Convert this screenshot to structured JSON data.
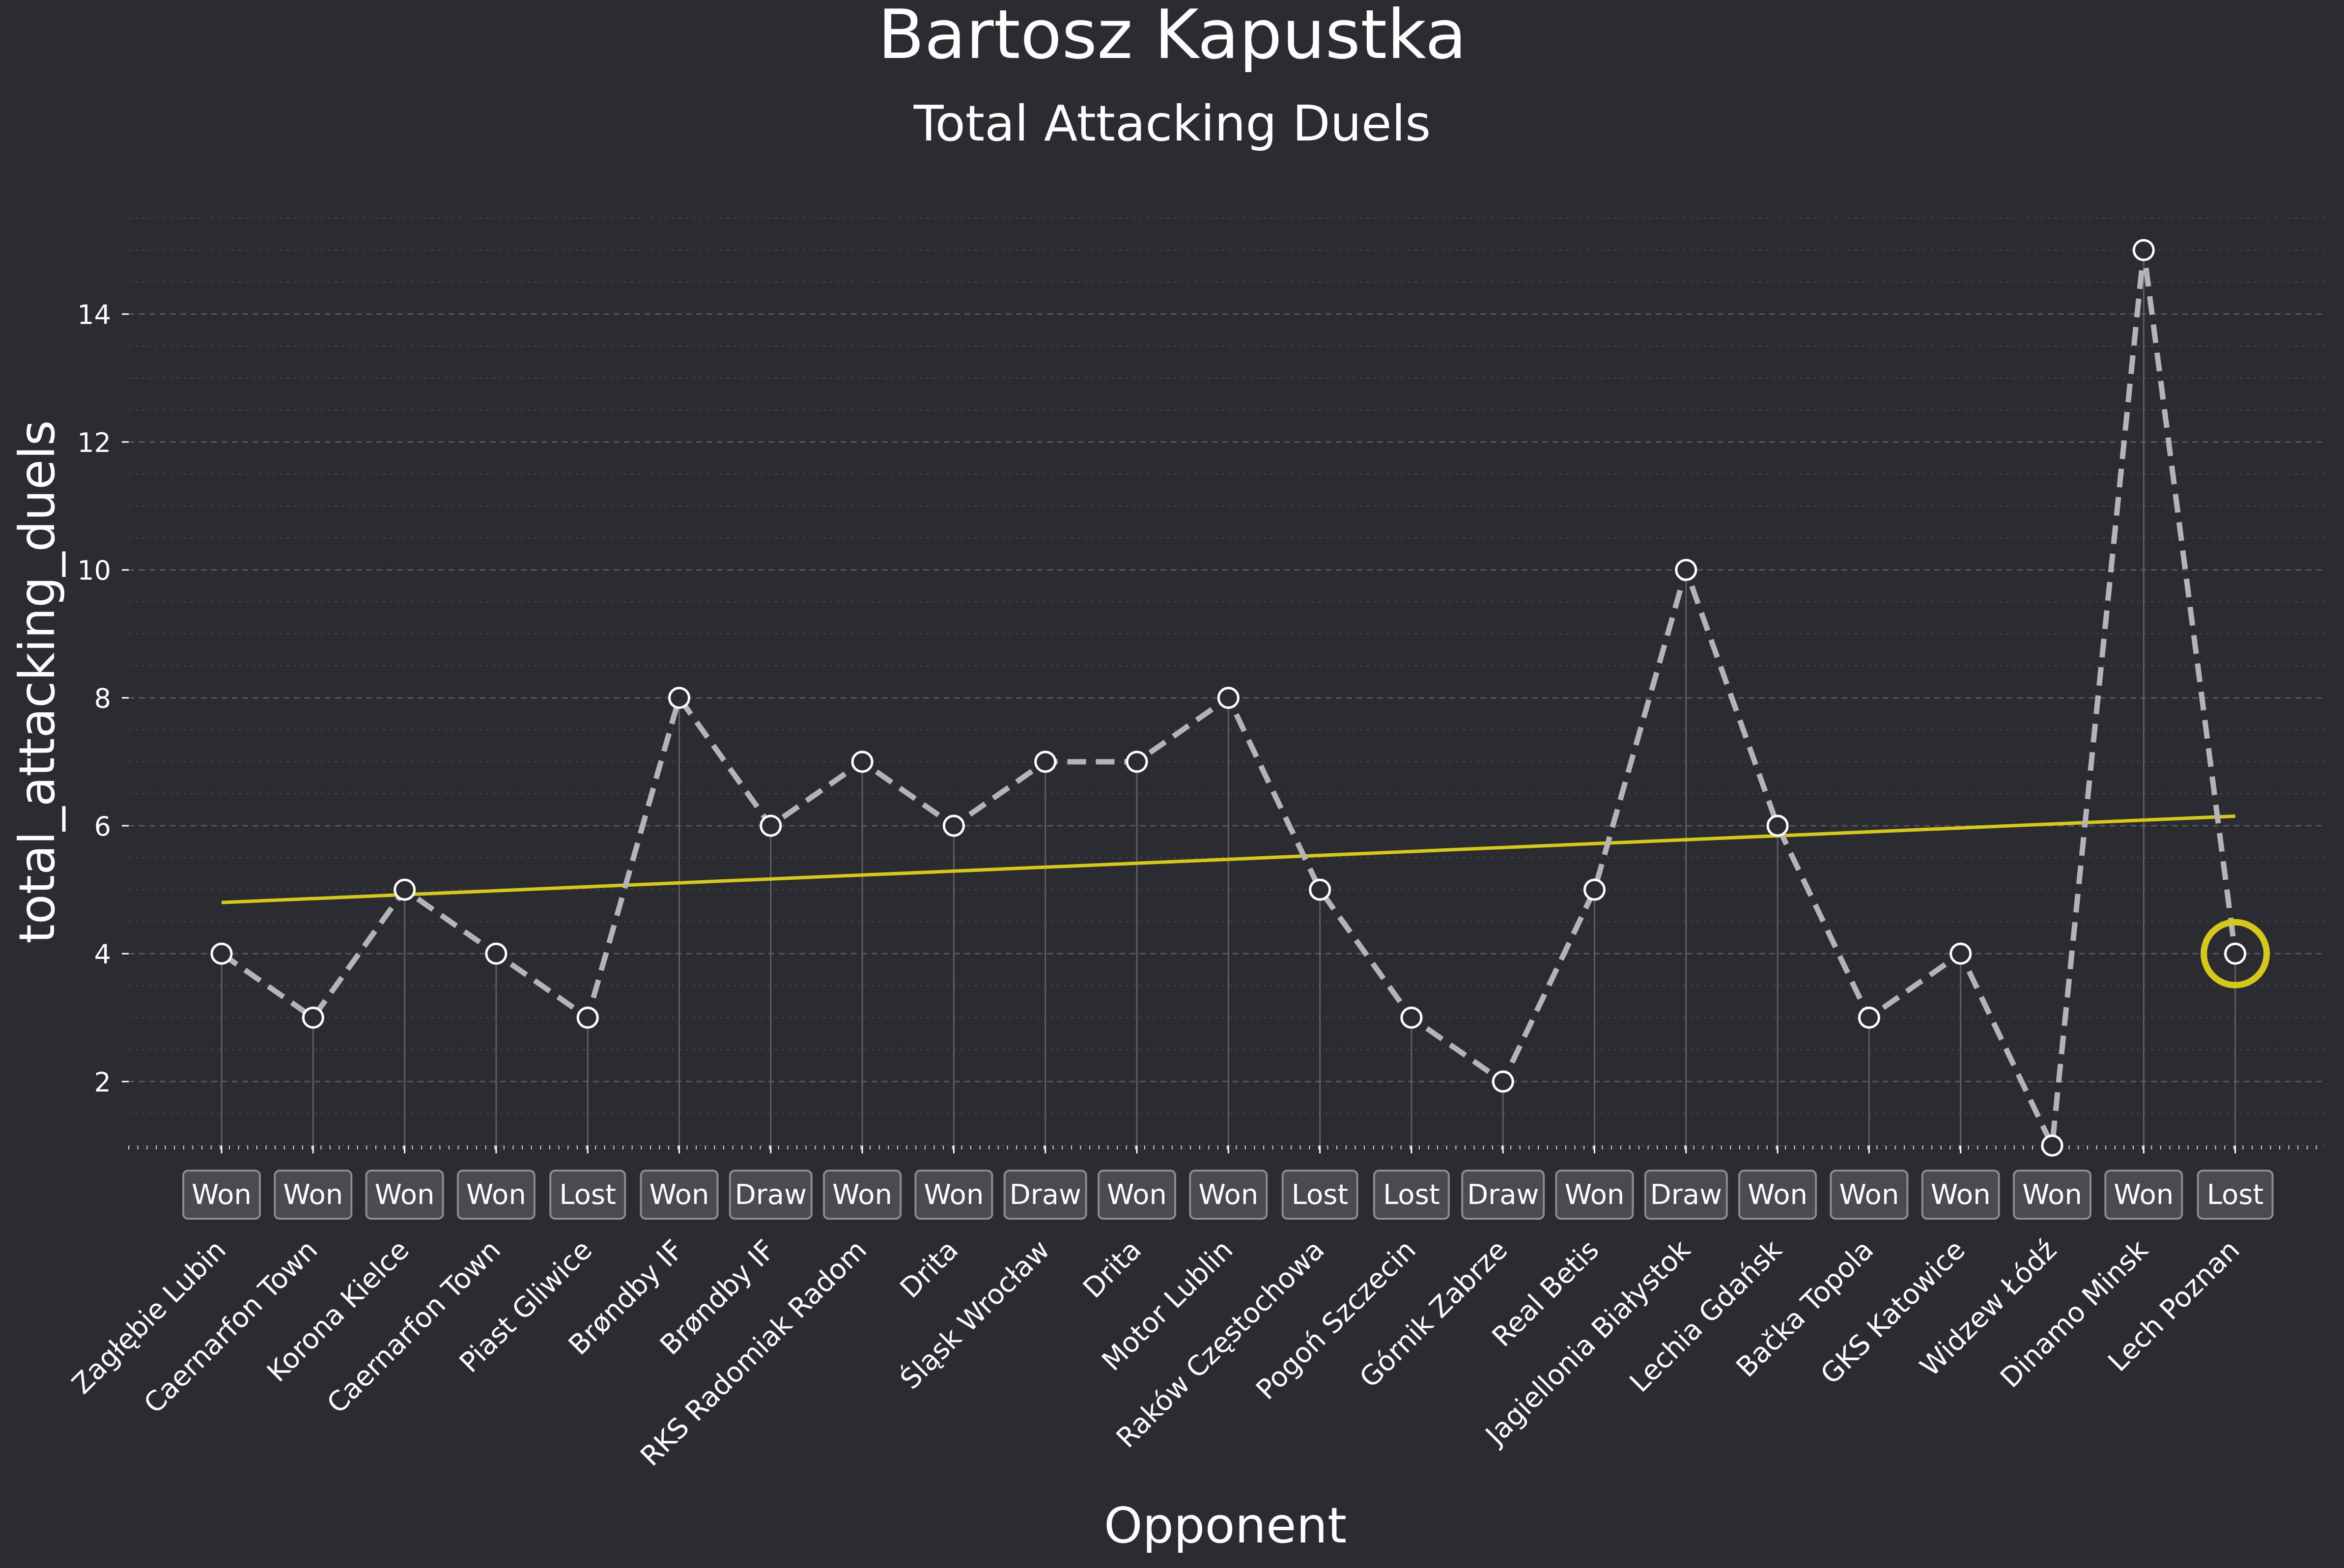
{
  "chart_data": {
    "type": "line",
    "title": "Bartosz Kapustka",
    "subtitle": "Total Attacking Duels",
    "xlabel": "Opponent",
    "ylabel": "total_attacking_duels",
    "ylim": [
      1,
      15.7
    ],
    "yticks": [
      2,
      4,
      6,
      8,
      10,
      12,
      14
    ],
    "grid": true,
    "categories": [
      "Zagłębie Lubin",
      "Caernarfon Town",
      "Korona Kielce",
      "Caernarfon Town",
      "Piast Gliwice",
      "Brøndby IF",
      "Brøndby IF",
      "RKS Radomiak Radom",
      "Drita",
      "Śląsk Wrocław",
      "Drita",
      "Motor Lublin",
      "Raków Częstochowa",
      "Pogoń Szczecin",
      "Górnik Zabrze",
      "Real Betis",
      "Jagiellonia Białystok",
      "Lechia Gdańsk",
      "Bačka Topola",
      "GKS Katowice",
      "Widzew Łódź",
      "Dinamo Minsk",
      "Lech Poznan"
    ],
    "values": [
      4,
      3,
      5,
      4,
      3,
      8,
      6,
      7,
      6,
      7,
      7,
      8,
      5,
      3,
      2,
      5,
      10,
      6,
      3,
      4,
      1,
      15,
      4
    ],
    "results": [
      "Won",
      "Won",
      "Won",
      "Won",
      "Lost",
      "Won",
      "Draw",
      "Won",
      "Won",
      "Draw",
      "Won",
      "Won",
      "Lost",
      "Lost",
      "Draw",
      "Won",
      "Draw",
      "Won",
      "Won",
      "Won",
      "Won",
      "Won",
      "Lost"
    ],
    "trend": {
      "start": 4.8,
      "end": 6.15
    },
    "highlight_index": 22,
    "colors": {
      "background": "#2b2c31",
      "line": "#b3b3b8",
      "marker_face": "#2b2c31",
      "marker_edge": "#ffffff",
      "trend": "#d6c81a",
      "text": "#ffffff",
      "grid": "#5a5b60",
      "badge_face": "#4a4b50",
      "badge_edge": "#8c8c90"
    }
  }
}
